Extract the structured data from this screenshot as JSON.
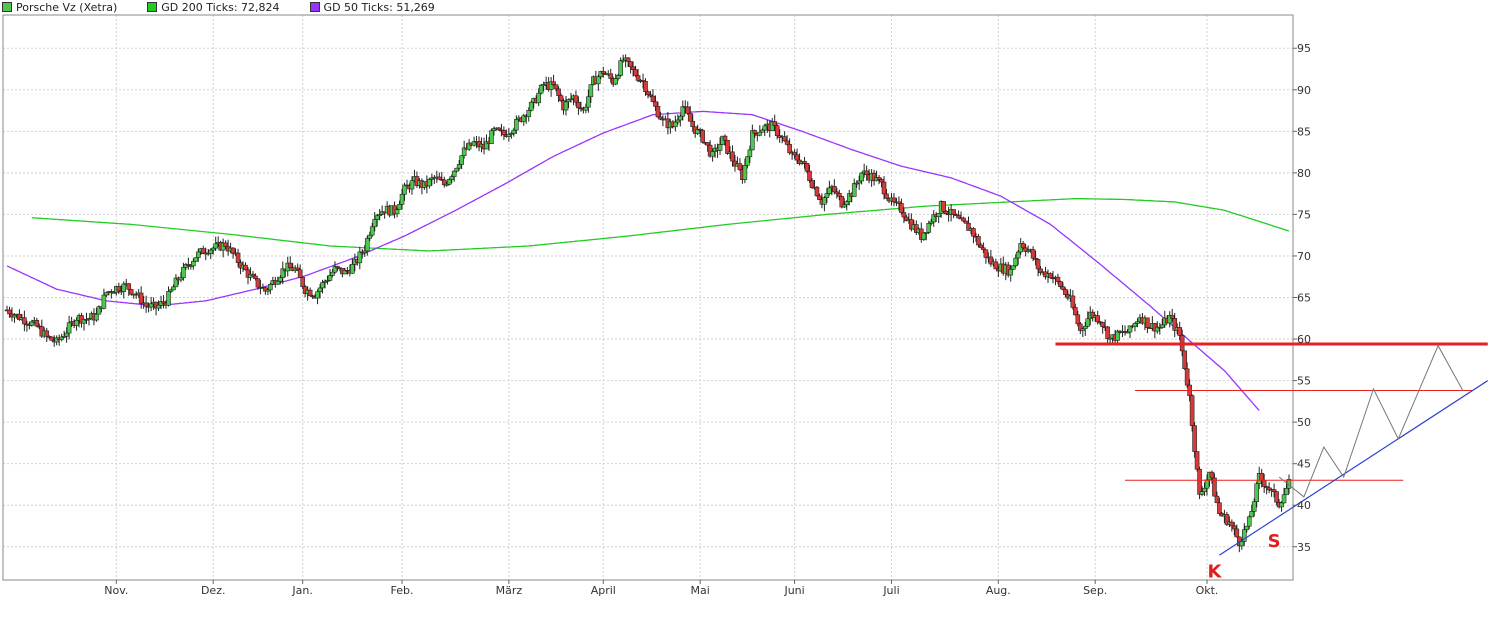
{
  "legend": [
    {
      "label": "Porsche Vz (Xetra)",
      "color": "#4cc94c"
    },
    {
      "label": "GD 200 Ticks: 72,824",
      "color": "#22cc22"
    },
    {
      "label": "GD 50 Ticks: 51,269",
      "color": "#9933ff"
    }
  ],
  "chart_data": {
    "type": "candlestick",
    "x_labels": [
      "Nov.",
      "Dez.",
      "Jan.",
      "Feb.",
      "März",
      "April",
      "Mai",
      "Juni",
      "Juli",
      "Aug.",
      "Sep.",
      "Okt."
    ],
    "y_ticks": [
      35,
      40,
      45,
      50,
      55,
      60,
      65,
      70,
      75,
      80,
      85,
      90,
      95
    ],
    "ylim": [
      31,
      99
    ],
    "xlim": [
      0,
      258
    ],
    "x_label_positions": [
      22,
      41.5,
      59.5,
      79.5,
      101,
      120,
      139.5,
      158.5,
      178,
      199.5,
      219,
      241.5
    ],
    "grid": true,
    "up_color": "#4cc94c",
    "down_color": "#d63a3a",
    "close_series": [
      [
        0,
        63.5
      ],
      [
        2,
        62.8
      ],
      [
        4,
        62.2
      ],
      [
        6,
        61.5
      ],
      [
        8,
        60.2
      ],
      [
        10,
        59.6
      ],
      [
        12,
        61.0
      ],
      [
        14,
        62.6
      ],
      [
        16,
        62.4
      ],
      [
        18,
        62.8
      ],
      [
        20,
        65.6
      ],
      [
        22,
        66.2
      ],
      [
        24,
        66.4
      ],
      [
        26,
        65.4
      ],
      [
        28,
        64.0
      ],
      [
        30,
        63.8
      ],
      [
        32,
        64.6
      ],
      [
        34,
        66.8
      ],
      [
        36,
        68.6
      ],
      [
        38,
        70.0
      ],
      [
        40,
        70.8
      ],
      [
        42,
        71.0
      ],
      [
        44,
        71.4
      ],
      [
        46,
        69.8
      ],
      [
        48,
        68.2
      ],
      [
        50,
        66.8
      ],
      [
        52,
        65.8
      ],
      [
        54,
        67.2
      ],
      [
        56,
        68.6
      ],
      [
        58,
        68.4
      ],
      [
        60,
        66.0
      ],
      [
        62,
        65.4
      ],
      [
        64,
        67.0
      ],
      [
        66,
        68.4
      ],
      [
        68,
        68.0
      ],
      [
        70,
        69.0
      ],
      [
        72,
        71.0
      ],
      [
        74,
        75.0
      ],
      [
        76,
        75.6
      ],
      [
        78,
        75.4
      ],
      [
        80,
        78.0
      ],
      [
        82,
        79.0
      ],
      [
        84,
        78.4
      ],
      [
        86,
        79.4
      ],
      [
        88,
        78.6
      ],
      [
        90,
        80.4
      ],
      [
        92,
        82.6
      ],
      [
        94,
        83.6
      ],
      [
        96,
        83.0
      ],
      [
        98,
        85.0
      ],
      [
        100,
        84.6
      ],
      [
        102,
        85.6
      ],
      [
        104,
        87.0
      ],
      [
        106,
        88.4
      ],
      [
        108,
        90.6
      ],
      [
        110,
        90.4
      ],
      [
        112,
        88.0
      ],
      [
        114,
        89.2
      ],
      [
        116,
        87.4
      ],
      [
        118,
        91.0
      ],
      [
        120,
        92.2
      ],
      [
        122,
        91.0
      ],
      [
        124,
        93.6
      ],
      [
        126,
        92.2
      ],
      [
        128,
        91.0
      ],
      [
        130,
        88.4
      ],
      [
        132,
        86.2
      ],
      [
        134,
        85.6
      ],
      [
        136,
        88.0
      ],
      [
        138,
        85.6
      ],
      [
        140,
        84.2
      ],
      [
        142,
        82.0
      ],
      [
        144,
        84.0
      ],
      [
        146,
        81.6
      ],
      [
        148,
        79.6
      ],
      [
        150,
        84.6
      ],
      [
        152,
        85.4
      ],
      [
        154,
        85.6
      ],
      [
        156,
        84.2
      ],
      [
        158,
        82.0
      ],
      [
        160,
        81.4
      ],
      [
        162,
        78.8
      ],
      [
        164,
        76.6
      ],
      [
        166,
        78.2
      ],
      [
        168,
        76.4
      ],
      [
        170,
        77.6
      ],
      [
        172,
        80.0
      ],
      [
        174,
        79.6
      ],
      [
        176,
        78.6
      ],
      [
        178,
        76.4
      ],
      [
        180,
        75.6
      ],
      [
        182,
        73.8
      ],
      [
        184,
        72.4
      ],
      [
        186,
        74.4
      ],
      [
        188,
        76.0
      ],
      [
        190,
        75.0
      ],
      [
        192,
        74.0
      ],
      [
        194,
        73.2
      ],
      [
        196,
        71.0
      ],
      [
        198,
        69.2
      ],
      [
        200,
        68.6
      ],
      [
        202,
        68.2
      ],
      [
        204,
        71.6
      ],
      [
        206,
        70.4
      ],
      [
        208,
        68.0
      ],
      [
        210,
        67.8
      ],
      [
        212,
        66.4
      ],
      [
        214,
        64.6
      ],
      [
        216,
        61.0
      ],
      [
        218,
        63.0
      ],
      [
        220,
        62.4
      ],
      [
        222,
        60.0
      ],
      [
        224,
        60.6
      ],
      [
        226,
        61.0
      ],
      [
        228,
        62.8
      ],
      [
        230,
        61.6
      ],
      [
        232,
        61.4
      ],
      [
        234,
        62.6
      ],
      [
        236,
        60.4
      ],
      [
        238,
        53.0
      ],
      [
        240,
        41.0
      ],
      [
        242,
        44.0
      ],
      [
        244,
        39.0
      ],
      [
        246,
        38.0
      ],
      [
        248,
        35.6
      ],
      [
        250,
        38.0
      ],
      [
        252,
        43.4
      ],
      [
        254,
        42.0
      ],
      [
        256,
        40.2
      ],
      [
        258,
        42.6
      ]
    ],
    "gd200_series": [
      [
        5,
        74.6
      ],
      [
        25,
        73.8
      ],
      [
        45,
        72.6
      ],
      [
        65,
        71.2
      ],
      [
        85,
        70.6
      ],
      [
        105,
        71.2
      ],
      [
        125,
        72.4
      ],
      [
        145,
        73.8
      ],
      [
        165,
        75.0
      ],
      [
        185,
        76.0
      ],
      [
        205,
        76.6
      ],
      [
        215,
        76.9
      ],
      [
        225,
        76.8
      ],
      [
        235,
        76.5
      ],
      [
        245,
        75.5
      ],
      [
        258,
        73.0
      ]
    ],
    "gd50_series": [
      [
        0,
        68.8
      ],
      [
        10,
        66.0
      ],
      [
        20,
        64.6
      ],
      [
        30,
        64.0
      ],
      [
        40,
        64.6
      ],
      [
        50,
        66.0
      ],
      [
        60,
        67.6
      ],
      [
        70,
        69.8
      ],
      [
        80,
        72.4
      ],
      [
        90,
        75.4
      ],
      [
        100,
        78.6
      ],
      [
        110,
        82.0
      ],
      [
        120,
        84.8
      ],
      [
        130,
        87.0
      ],
      [
        140,
        87.4
      ],
      [
        150,
        87.0
      ],
      [
        160,
        85.0
      ],
      [
        170,
        82.8
      ],
      [
        180,
        80.8
      ],
      [
        190,
        79.4
      ],
      [
        200,
        77.2
      ],
      [
        210,
        73.8
      ],
      [
        220,
        69.0
      ],
      [
        230,
        64.0
      ],
      [
        238,
        59.8
      ],
      [
        245,
        56.2
      ],
      [
        252,
        51.4
      ]
    ],
    "resistance_lines": [
      {
        "price": 59.4,
        "from": 211,
        "to": 298,
        "width": 3,
        "color": "#e82020"
      },
      {
        "price": 53.8,
        "from": 227,
        "to": 295,
        "width": 1,
        "color": "#e82020"
      },
      {
        "price": 43.0,
        "from": 225,
        "to": 281,
        "width": 1,
        "color": "#e82020"
      }
    ],
    "trend_line": {
      "from": [
        244,
        34.0
      ],
      "to": [
        298,
        55.0
      ],
      "color": "#2a3fcf"
    },
    "projection_path": [
      [
        256,
        43.4
      ],
      [
        261,
        41.0
      ],
      [
        265,
        47.0
      ],
      [
        269,
        43.4
      ],
      [
        275,
        54.0
      ],
      [
        280,
        48.0
      ],
      [
        288,
        59.2
      ],
      [
        293,
        53.8
      ]
    ],
    "annotations": [
      {
        "text": "K",
        "x": 243,
        "y": 31.3
      },
      {
        "text": "S",
        "x": 255,
        "y": 35.0
      }
    ]
  }
}
